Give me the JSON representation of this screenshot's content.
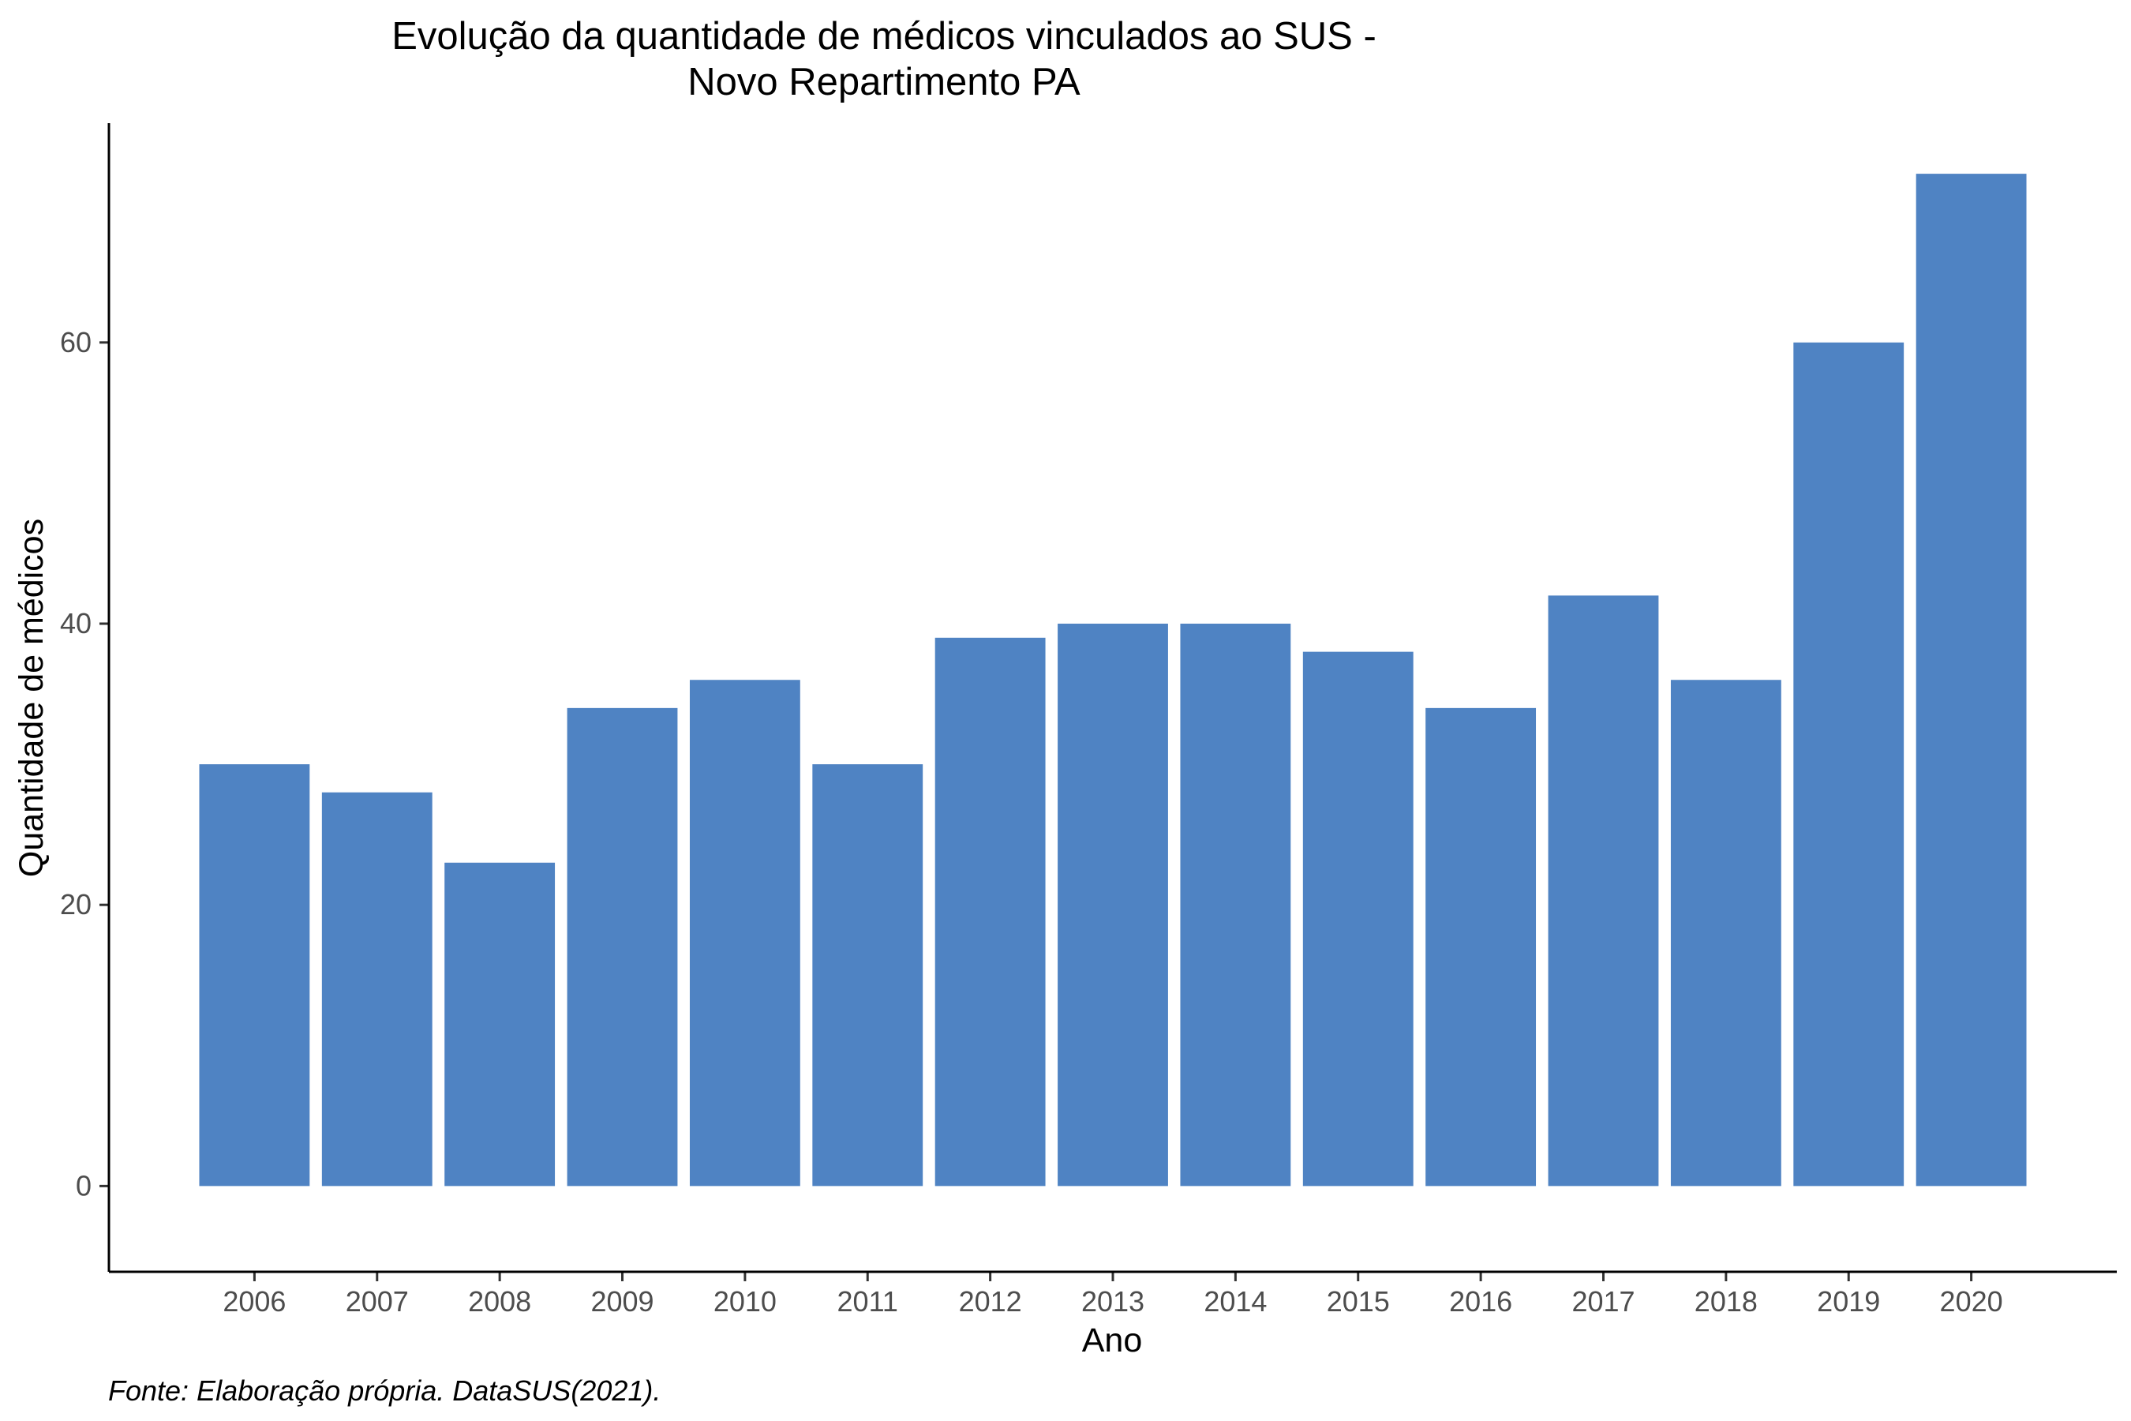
{
  "chart_data": {
    "type": "bar",
    "title_lines": [
      "Evolução da quantidade de médicos vinculados ao SUS -",
      "Novo Repartimento PA"
    ],
    "xlabel": "Ano",
    "ylabel": "Quantidade de médicos",
    "caption": "Fonte: Elaboração própria. DataSUS(2021).",
    "categories": [
      "2006",
      "2007",
      "2008",
      "2009",
      "2010",
      "2011",
      "2012",
      "2013",
      "2014",
      "2015",
      "2016",
      "2017",
      "2018",
      "2019",
      "2020"
    ],
    "values": [
      30,
      28,
      23,
      34,
      36,
      30,
      39,
      40,
      40,
      38,
      34,
      42,
      36,
      60,
      72
    ],
    "yticks": [
      0,
      20,
      40,
      60
    ],
    "ylim": [
      -6.1,
      75.6
    ],
    "bar_color": "#4f83c3",
    "grid": false,
    "legend": "none"
  }
}
